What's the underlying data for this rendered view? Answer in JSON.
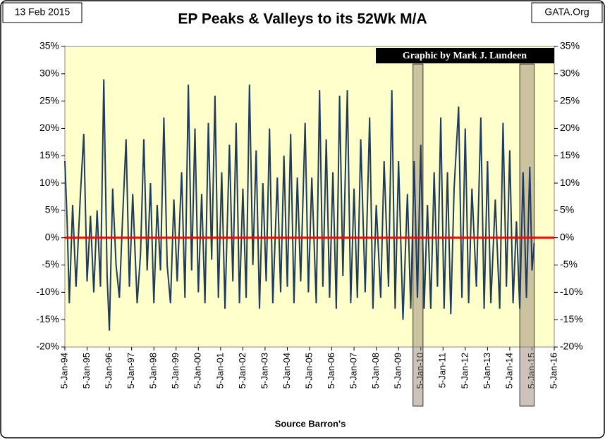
{
  "chart_data": {
    "type": "line",
    "title": "EP Peaks & Valleys to its 52Wk M/A",
    "date_label": "13 Feb 2015",
    "source_tag": "GATA.Org",
    "credit": "Graphic by Mark J. Lundeen",
    "xlabel": "Source Barron's",
    "x": [
      1994.0,
      1994.1,
      1994.2,
      1994.35,
      1994.5,
      1994.7,
      1994.85,
      1995.0,
      1995.15,
      1995.3,
      1995.45,
      1995.6,
      1995.75,
      1995.9,
      1996.0,
      1996.15,
      1996.3,
      1996.45,
      1996.6,
      1996.75,
      1996.9,
      1997.05,
      1997.25,
      1997.4,
      1997.55,
      1997.7,
      1997.85,
      1998.0,
      1998.15,
      1998.3,
      1998.45,
      1998.6,
      1998.75,
      1998.9,
      1999.05,
      1999.25,
      1999.4,
      1999.55,
      1999.7,
      1999.85,
      2000.0,
      2000.15,
      2000.3,
      2000.45,
      2000.6,
      2000.75,
      2000.9,
      2001.05,
      2001.2,
      2001.4,
      2001.55,
      2001.7,
      2001.85,
      2002.0,
      2002.15,
      2002.3,
      2002.45,
      2002.6,
      2002.75,
      2002.9,
      2003.05,
      2003.2,
      2003.35,
      2003.55,
      2003.7,
      2003.85,
      2004.0,
      2004.15,
      2004.3,
      2004.45,
      2004.6,
      2004.8,
      2004.95,
      2005.1,
      2005.3,
      2005.45,
      2005.6,
      2005.75,
      2005.9,
      2006.05,
      2006.2,
      2006.35,
      2006.5,
      2006.7,
      2006.85,
      2007.0,
      2007.15,
      2007.3,
      2007.5,
      2007.7,
      2007.85,
      2008.0,
      2008.2,
      2008.35,
      2008.55,
      2008.7,
      2008.85,
      2009.0,
      2009.2,
      2009.4,
      2009.55,
      2009.7,
      2009.85,
      2010.0,
      2010.15,
      2010.3,
      2010.45,
      2010.6,
      2010.75,
      2010.9,
      2011.05,
      2011.2,
      2011.35,
      2011.5,
      2011.7,
      2011.85,
      2012.0,
      2012.15,
      2012.3,
      2012.5,
      2012.7,
      2012.85,
      2013.0,
      2013.15,
      2013.35,
      2013.55,
      2013.7,
      2013.85,
      2014.0,
      2014.15,
      2014.3,
      2014.45,
      2014.6,
      2014.75,
      2014.9,
      2015.0,
      2015.1
    ],
    "series": [
      {
        "name": "EP",
        "color": "#1f3a5f",
        "values": [
          14,
          3,
          -12,
          6,
          -9,
          8,
          19,
          -8,
          4,
          -10,
          5,
          -9,
          29,
          -7,
          -17,
          9,
          -5,
          -11,
          4,
          18,
          -9,
          8,
          -12,
          -3,
          18,
          -6,
          10,
          -12,
          6,
          -6,
          22,
          -5,
          -12,
          7,
          -8,
          12,
          -11,
          28,
          -6,
          20,
          -10,
          8,
          -12,
          21,
          -4,
          26,
          -11,
          12,
          -13,
          17,
          -8,
          21,
          -12,
          9,
          -11,
          28,
          -5,
          16,
          -13,
          10,
          -8,
          20,
          -12,
          11,
          -10,
          15,
          -9,
          19,
          -12,
          11,
          -8,
          21,
          -10,
          11,
          -12,
          27,
          -9,
          18,
          -11,
          12,
          -13,
          26,
          -7,
          27,
          -12,
          9,
          -11,
          18,
          -10,
          22,
          -13,
          6,
          -11,
          14,
          -9,
          27,
          -13,
          14,
          -15,
          8,
          -13,
          14,
          -11,
          17,
          -13,
          6,
          -13,
          12,
          -9,
          22,
          -13,
          12,
          -14,
          9,
          24,
          -11,
          20,
          -12,
          9,
          -9,
          22,
          -13,
          14,
          -12,
          7,
          -13,
          21,
          -9,
          16,
          -12,
          3,
          -13,
          12,
          -11,
          13,
          -6,
          -1
        ]
      }
    ],
    "xlim": [
      1994.0,
      2016.0
    ],
    "xticks": [
      {
        "value": 1994,
        "label": "5-Jan-94"
      },
      {
        "value": 1995,
        "label": "5-Jan-95"
      },
      {
        "value": 1996,
        "label": "5-Jan-96"
      },
      {
        "value": 1997,
        "label": "5-Jan-97"
      },
      {
        "value": 1998,
        "label": "5-Jan-98"
      },
      {
        "value": 1999,
        "label": "5-Jan-99"
      },
      {
        "value": 2000,
        "label": "5-Jan-00"
      },
      {
        "value": 2001,
        "label": "5-Jan-01"
      },
      {
        "value": 2002,
        "label": "5-Jan-02"
      },
      {
        "value": 2003,
        "label": "5-Jan-03"
      },
      {
        "value": 2004,
        "label": "5-Jan-04"
      },
      {
        "value": 2005,
        "label": "5-Jan-05"
      },
      {
        "value": 2006,
        "label": "5-Jan-06"
      },
      {
        "value": 2007,
        "label": "5-Jan-07"
      },
      {
        "value": 2008,
        "label": "5-Jan-08"
      },
      {
        "value": 2009,
        "label": "5-Jan-09"
      },
      {
        "value": 2010,
        "label": "5-Jan-10"
      },
      {
        "value": 2011,
        "label": "5-Jan-11"
      },
      {
        "value": 2012,
        "label": "5-Jan-12"
      },
      {
        "value": 2013,
        "label": "5-Jan-13"
      },
      {
        "value": 2014,
        "label": "5-Jan-14"
      },
      {
        "value": 2015,
        "label": "5-Jan-15"
      },
      {
        "value": 2016,
        "label": "5-Jan-16"
      }
    ],
    "ylim": [
      -20,
      35
    ],
    "yticks": [
      {
        "value": -20,
        "label": "-20%"
      },
      {
        "value": -15,
        "label": "-15%"
      },
      {
        "value": -10,
        "label": "-10%"
      },
      {
        "value": -5,
        "label": "-5%"
      },
      {
        "value": 0,
        "label": "0%"
      },
      {
        "value": 5,
        "label": "5%"
      },
      {
        "value": 10,
        "label": "10%"
      },
      {
        "value": 15,
        "label": "15%"
      },
      {
        "value": 20,
        "label": "20%"
      },
      {
        "value": 25,
        "label": "25%"
      },
      {
        "value": 30,
        "label": "30%"
      },
      {
        "value": 35,
        "label": "35%"
      }
    ],
    "reference_line": {
      "value": 0,
      "color": "#ff0000"
    },
    "shaded_regions": [
      [
        2009.65,
        2010.1
      ],
      [
        2014.45,
        2015.1
      ]
    ],
    "shade_color": "#8b7b6b",
    "plot_background": "#ffffcc"
  }
}
